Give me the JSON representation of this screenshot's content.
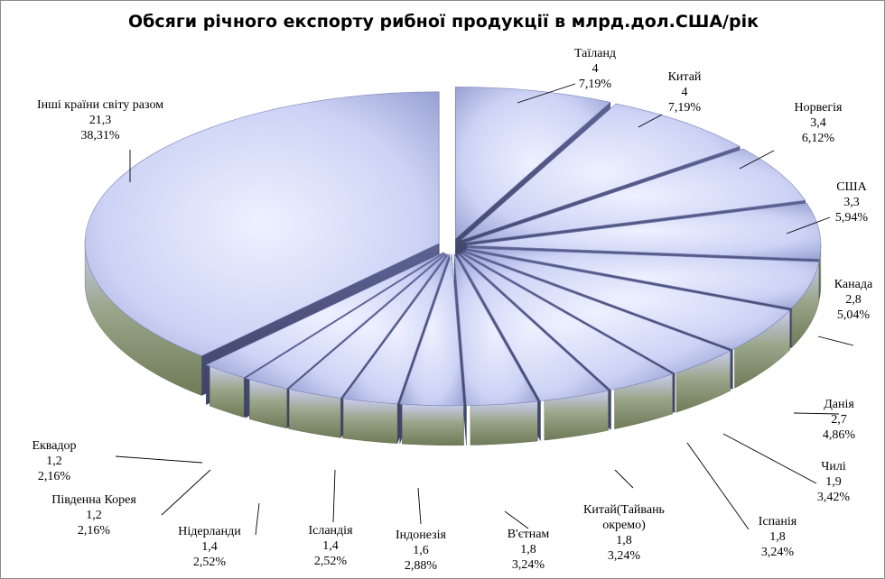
{
  "chart_data": {
    "type": "pie",
    "variant": "3d-exploded",
    "title": "Обсяги річного експорту рибної продукції в млрд.дол.США/рік",
    "slices": [
      {
        "label": "Таїланд",
        "value": "4",
        "percent": "7,19%"
      },
      {
        "label": "Китай",
        "value": "4",
        "percent": "7,19%"
      },
      {
        "label": "Норвегія",
        "value": "3,4",
        "percent": "6,12%"
      },
      {
        "label": "США",
        "value": "3,3",
        "percent": "5,94%"
      },
      {
        "label": "Канада",
        "value": "2,8",
        "percent": "5,04%"
      },
      {
        "label": "Данія",
        "value": "2,7",
        "percent": "4,86%"
      },
      {
        "label": "Чилі",
        "value": "1,9",
        "percent": "3,42%"
      },
      {
        "label": "Іспанія",
        "value": "1,8",
        "percent": "3,24%"
      },
      {
        "label": "Китай(Тайвань окремо)",
        "value": "1,8",
        "percent": "3,24%"
      },
      {
        "label": "В'єтнам",
        "value": "1,8",
        "percent": "3,24%"
      },
      {
        "label": "Індонезія",
        "value": "1,6",
        "percent": "2,88%"
      },
      {
        "label": "Ісландія",
        "value": "1,4",
        "percent": "2,52%"
      },
      {
        "label": "Нідерланди",
        "value": "1,4",
        "percent": "2,52%"
      },
      {
        "label": "Південна Корея",
        "value": "1,2",
        "percent": "2,16%"
      },
      {
        "label": "Еквадор",
        "value": "1,2",
        "percent": "2,16%"
      },
      {
        "label": "Інші країни світу разом",
        "value": "21,3",
        "percent": "38,31%"
      }
    ],
    "colors": {
      "top_light": "#dde3fb",
      "top_dark": "#8a92c8",
      "side_dark": "#4e5480",
      "rim_top": "#c4c9ef",
      "rim_bottom": "#7f8b6b",
      "leader": "#000000"
    }
  }
}
